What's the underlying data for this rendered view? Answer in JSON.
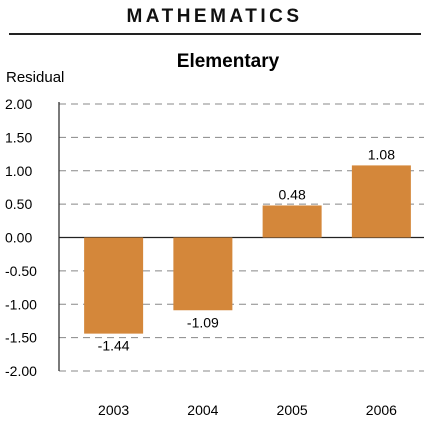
{
  "header": {
    "section_title": "MATHEMATICS"
  },
  "chart_data": {
    "type": "bar",
    "title": "Elementary",
    "ylabel": "Residual",
    "xlabel": "",
    "categories": [
      "2003",
      "2004",
      "2005",
      "2006"
    ],
    "values": [
      -1.44,
      -1.09,
      0.48,
      1.08
    ],
    "data_labels": [
      "-1.44",
      "-1.09",
      "0.48",
      "1.08"
    ],
    "ylim": [
      -2.0,
      2.0
    ],
    "yticks": [
      2.0,
      1.5,
      1.0,
      0.5,
      0.0,
      -0.5,
      -1.0,
      -1.5,
      -2.0
    ],
    "ytick_labels": [
      "2.00",
      "1.50",
      "1.00",
      "0.50",
      "0.00",
      "-0.50",
      "-1.00",
      "-1.50",
      "-2.00"
    ],
    "grid": "dashed-horizontal",
    "bar_color": "#d4873a"
  }
}
